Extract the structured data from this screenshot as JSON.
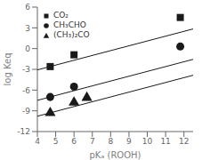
{
  "chart_data": {
    "type": "scatter",
    "xlabel": "pKₐ (ROOH)",
    "ylabel": "log Keq",
    "xlim": [
      4,
      12.5
    ],
    "ylim": [
      -12,
      6
    ],
    "xticks": [
      4,
      5,
      6,
      7,
      8,
      9,
      10,
      11,
      12
    ],
    "yticks": [
      -12,
      -9,
      -6,
      -3,
      0,
      3,
      6
    ],
    "grid": false,
    "legend": "upper left",
    "series": [
      {
        "name": "CO₂",
        "color": "#1a1a1a",
        "marker": "square",
        "x": [
          4.7,
          6.0,
          11.8
        ],
        "values": [
          -2.6,
          -0.9,
          4.5
        ],
        "fit": {
          "x": [
            4.0,
            12.5
          ],
          "values": [
            -3.082,
            2.8425
          ]
        }
      },
      {
        "name": "CH₃CHO",
        "color": "#1a1a1a",
        "marker": "circle",
        "x": [
          4.7,
          6.0,
          11.8
        ],
        "values": [
          -7.0,
          -5.5,
          0.3
        ],
        "fit": {
          "x": [
            4.0,
            12.5
          ],
          "values": [
            -7.482,
            -1.5575
          ]
        }
      },
      {
        "name": "(CH₃)₂CO",
        "color": "#1a1a1a",
        "marker": "triangle",
        "x": [
          4.7,
          6.0,
          6.7
        ],
        "values": [
          -9.3,
          -7.8,
          -7.1
        ],
        "fit": {
          "x": [
            4.0,
            12.5
          ],
          "values": [
            -9.782,
            -3.8575
          ]
        }
      }
    ]
  }
}
